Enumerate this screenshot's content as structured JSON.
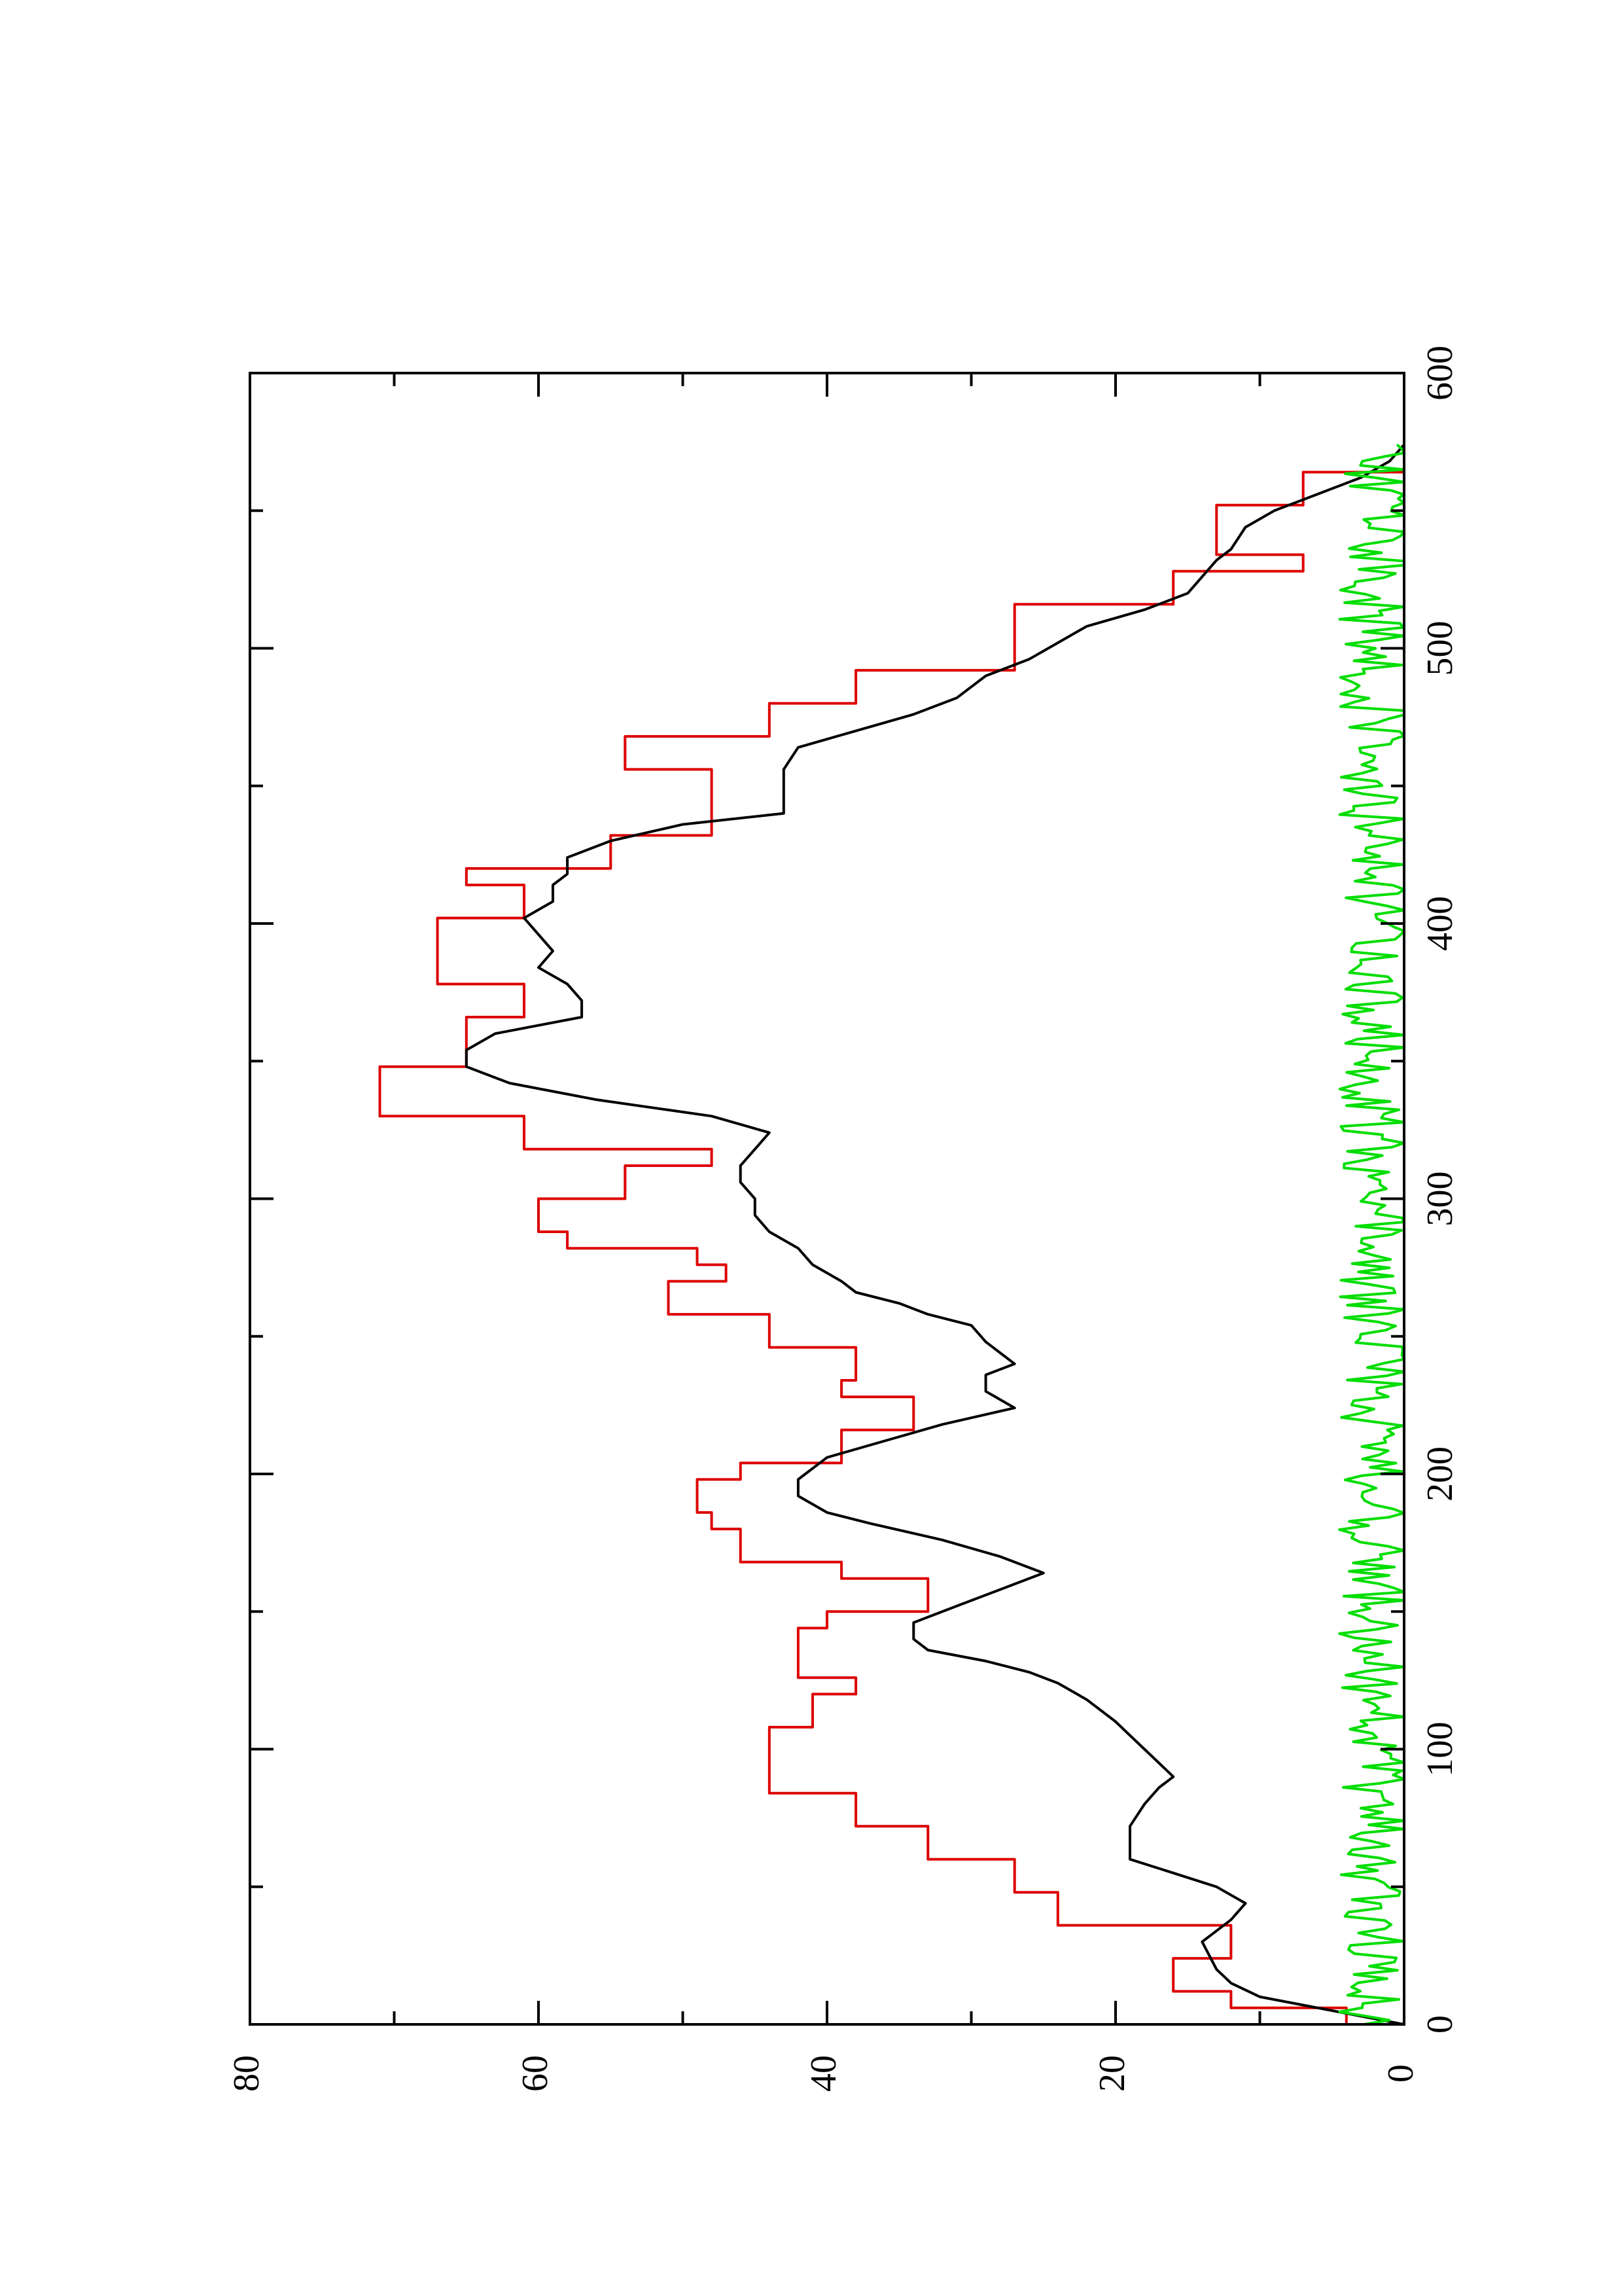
{
  "chart_data": {
    "type": "line",
    "orientation": "rotated-90-ccw",
    "title": "",
    "xlabel": "",
    "ylabel": "",
    "xlim": [
      0,
      600
    ],
    "ylim": [
      0,
      80
    ],
    "x_ticks": [
      0,
      100,
      200,
      300,
      400,
      500,
      600
    ],
    "x_minor_ticks": [
      50,
      150,
      250,
      350,
      450,
      550
    ],
    "y_ticks": [
      0,
      20,
      40,
      60,
      80
    ],
    "y_minor_ticks": [
      10,
      30,
      50,
      70
    ],
    "grid": false,
    "legend": "none",
    "series": [
      {
        "color": "#dd0000",
        "step": true,
        "points": [
          [
            0,
            0
          ],
          [
            6,
            4
          ],
          [
            12,
            12
          ],
          [
            24,
            16
          ],
          [
            36,
            12
          ],
          [
            48,
            24
          ],
          [
            60,
            27
          ],
          [
            72,
            33
          ],
          [
            84,
            38
          ],
          [
            96,
            44
          ],
          [
            108,
            44
          ],
          [
            120,
            41
          ],
          [
            126,
            38
          ],
          [
            144,
            42
          ],
          [
            150,
            40
          ],
          [
            162,
            33
          ],
          [
            168,
            39
          ],
          [
            180,
            46
          ],
          [
            186,
            48
          ],
          [
            198,
            49
          ],
          [
            204,
            46
          ],
          [
            216,
            39
          ],
          [
            228,
            34
          ],
          [
            234,
            39
          ],
          [
            246,
            38
          ],
          [
            258,
            44
          ],
          [
            270,
            51
          ],
          [
            276,
            47
          ],
          [
            282,
            49
          ],
          [
            288,
            58
          ],
          [
            300,
            60
          ],
          [
            312,
            54
          ],
          [
            318,
            48
          ],
          [
            330,
            61
          ],
          [
            342,
            71
          ],
          [
            348,
            71
          ],
          [
            360,
            65
          ],
          [
            366,
            65
          ],
          [
            378,
            61
          ],
          [
            390,
            67
          ],
          [
            402,
            67
          ],
          [
            414,
            61
          ],
          [
            420,
            65
          ],
          [
            432,
            55
          ],
          [
            444,
            48
          ],
          [
            456,
            48
          ],
          [
            468,
            54
          ],
          [
            480,
            44
          ],
          [
            492,
            38
          ],
          [
            504,
            27
          ],
          [
            516,
            27
          ],
          [
            528,
            16
          ],
          [
            534,
            7
          ],
          [
            546,
            13
          ],
          [
            552,
            13
          ],
          [
            564,
            7
          ],
          [
            574,
            0
          ]
        ]
      },
      {
        "color": "#000000",
        "step": false,
        "points": [
          [
            0,
            0
          ],
          [
            5,
            5
          ],
          [
            10,
            10
          ],
          [
            15,
            12
          ],
          [
            20,
            13
          ],
          [
            30,
            14
          ],
          [
            38,
            12
          ],
          [
            44,
            11
          ],
          [
            50,
            13
          ],
          [
            55,
            16
          ],
          [
            60,
            19
          ],
          [
            66,
            19
          ],
          [
            72,
            19
          ],
          [
            80,
            18
          ],
          [
            86,
            17
          ],
          [
            90,
            16
          ],
          [
            95,
            17
          ],
          [
            100,
            18
          ],
          [
            105,
            19
          ],
          [
            110,
            20
          ],
          [
            118,
            22
          ],
          [
            124,
            24
          ],
          [
            128,
            26
          ],
          [
            132,
            29
          ],
          [
            136,
            33
          ],
          [
            140,
            34
          ],
          [
            146,
            34
          ],
          [
            152,
            31
          ],
          [
            158,
            28
          ],
          [
            164,
            25
          ],
          [
            170,
            28
          ],
          [
            176,
            32
          ],
          [
            182,
            37
          ],
          [
            186,
            40
          ],
          [
            192,
            42
          ],
          [
            198,
            42
          ],
          [
            206,
            40
          ],
          [
            212,
            36
          ],
          [
            218,
            32
          ],
          [
            224,
            27
          ],
          [
            230,
            29
          ],
          [
            236,
            29
          ],
          [
            240,
            27
          ],
          [
            244,
            28
          ],
          [
            248,
            29
          ],
          [
            254,
            30
          ],
          [
            258,
            33
          ],
          [
            262,
            35
          ],
          [
            266,
            38
          ],
          [
            270,
            39
          ],
          [
            276,
            41
          ],
          [
            282,
            42
          ],
          [
            288,
            44
          ],
          [
            294,
            45
          ],
          [
            300,
            45
          ],
          [
            306,
            46
          ],
          [
            312,
            46
          ],
          [
            318,
            45
          ],
          [
            324,
            44
          ],
          [
            330,
            48
          ],
          [
            336,
            56
          ],
          [
            342,
            62
          ],
          [
            348,
            65
          ],
          [
            354,
            65
          ],
          [
            360,
            63
          ],
          [
            366,
            57
          ],
          [
            372,
            57
          ],
          [
            378,
            58
          ],
          [
            384,
            60
          ],
          [
            390,
            59
          ],
          [
            396,
            60
          ],
          [
            402,
            61
          ],
          [
            408,
            59
          ],
          [
            414,
            59
          ],
          [
            418,
            58
          ],
          [
            424,
            58
          ],
          [
            430,
            55
          ],
          [
            436,
            50
          ],
          [
            440,
            43
          ],
          [
            448,
            43
          ],
          [
            456,
            43
          ],
          [
            464,
            42
          ],
          [
            470,
            38
          ],
          [
            476,
            34
          ],
          [
            482,
            31
          ],
          [
            490,
            29
          ],
          [
            496,
            26
          ],
          [
            502,
            24
          ],
          [
            508,
            22
          ],
          [
            514,
            18
          ],
          [
            520,
            15
          ],
          [
            526,
            14
          ],
          [
            532,
            13
          ],
          [
            536,
            12
          ],
          [
            544,
            11
          ],
          [
            550,
            9
          ],
          [
            556,
            6
          ],
          [
            562,
            3
          ],
          [
            568,
            1
          ],
          [
            574,
            0
          ]
        ]
      },
      {
        "color": "#00dd00",
        "step": false,
        "noise": true,
        "x_range": [
          0,
          574
        ],
        "baseline": 2,
        "amplitude": 2.5,
        "points_count": 380
      }
    ]
  }
}
